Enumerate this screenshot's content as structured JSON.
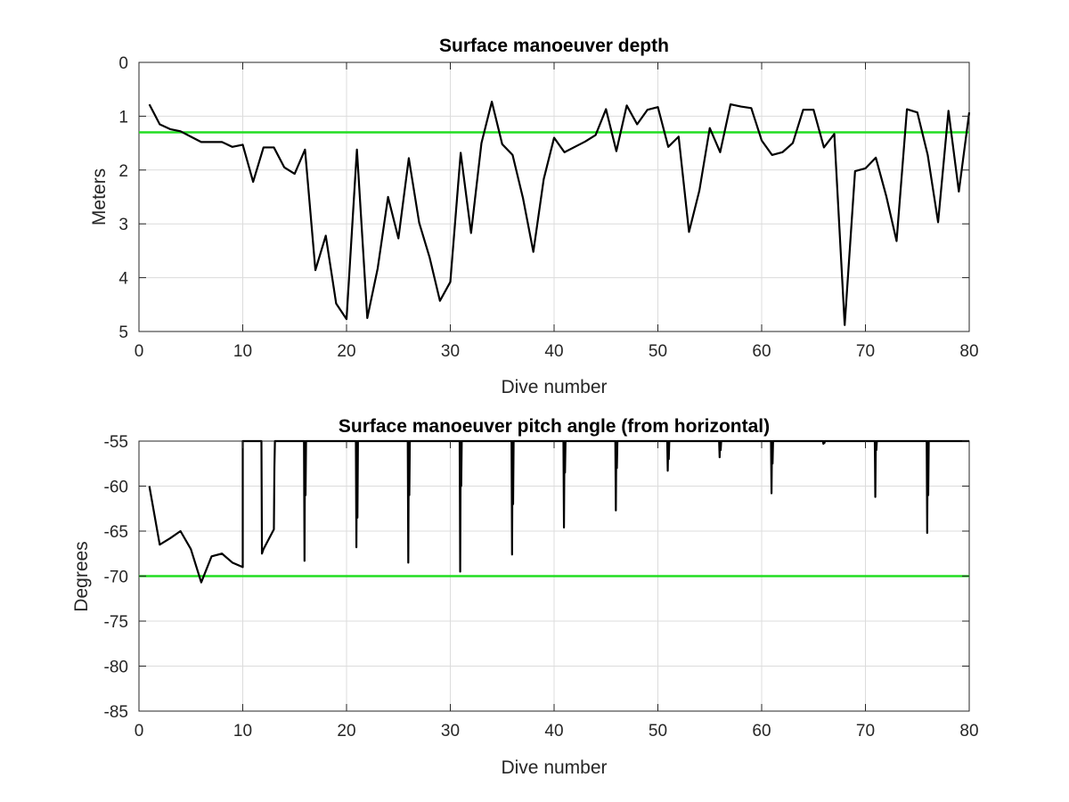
{
  "colors": {
    "series": "#000000",
    "threshold": "#22dd22",
    "grid": "#dcdcdc",
    "axis": "#262626",
    "background": "#ffffff"
  },
  "chart_data": [
    {
      "type": "line",
      "title": "Surface manoeuver depth",
      "xlabel": "Dive number",
      "ylabel": "Meters",
      "xlim": [
        0,
        80
      ],
      "ylim": [
        0,
        5
      ],
      "y_reversed": true,
      "grid": true,
      "xticks": [
        "0",
        "10",
        "20",
        "30",
        "40",
        "50",
        "60",
        "70",
        "80"
      ],
      "yticks": [
        "0",
        "1",
        "2",
        "3",
        "4",
        "5"
      ],
      "series": [
        {
          "x": [
            1,
            2,
            3,
            4,
            5,
            6,
            7,
            8,
            9,
            10,
            11,
            12,
            13,
            14,
            15,
            16,
            17,
            18,
            19,
            20,
            21,
            22,
            23,
            24,
            25,
            26,
            27,
            28,
            29,
            30,
            31,
            32,
            33,
            34,
            35,
            36,
            37,
            38,
            39,
            40,
            41,
            42,
            43,
            44,
            45,
            46,
            47,
            48,
            49,
            50,
            51,
            52,
            53,
            54,
            55,
            56,
            57,
            58,
            59,
            60,
            61,
            62,
            63,
            64,
            65,
            66,
            67,
            68,
            69,
            70,
            71,
            72,
            73,
            74,
            75,
            76,
            77,
            78,
            79,
            80
          ],
          "y": [
            0.78,
            1.15,
            1.24,
            1.28,
            1.38,
            1.48,
            1.48,
            1.48,
            1.57,
            1.53,
            2.22,
            1.58,
            1.58,
            1.95,
            2.07,
            1.62,
            3.86,
            3.22,
            4.48,
            4.77,
            1.62,
            4.75,
            3.83,
            2.5,
            3.27,
            1.78,
            2.98,
            3.62,
            4.43,
            4.08,
            1.68,
            3.17,
            1.5,
            0.73,
            1.52,
            1.72,
            2.52,
            3.52,
            2.17,
            1.4,
            1.67,
            1.57,
            1.47,
            1.35,
            0.87,
            1.65,
            0.8,
            1.15,
            0.88,
            0.83,
            1.57,
            1.38,
            3.15,
            2.38,
            1.22,
            1.67,
            0.78,
            0.82,
            0.85,
            1.45,
            1.72,
            1.67,
            1.5,
            0.88,
            0.88,
            1.58,
            1.33,
            4.88,
            2.02,
            1.97,
            1.77,
            2.48,
            3.32,
            0.87,
            0.93,
            1.72,
            2.97,
            0.9,
            2.4,
            0.93
          ]
        }
      ],
      "threshold": 1.3
    },
    {
      "type": "line",
      "title": "Surface manoeuver pitch angle (from horizontal)",
      "xlabel": "Dive number",
      "ylabel": "Degrees",
      "xlim": [
        0,
        80
      ],
      "ylim": [
        -85,
        -55
      ],
      "grid": true,
      "xticks": [
        "0",
        "10",
        "20",
        "30",
        "40",
        "50",
        "60",
        "70",
        "80"
      ],
      "yticks": [
        "-55",
        "-60",
        "-65",
        "-70",
        "-75",
        "-80",
        "-85"
      ],
      "series": [
        {
          "x": [
            1,
            2,
            3,
            4,
            5,
            6,
            7,
            8,
            9,
            10,
            10,
            10.1,
            11.8,
            11.85,
            12,
            13,
            13.05,
            13.1,
            15.9,
            15.95,
            16,
            16.05,
            16.1,
            20.9,
            20.95,
            21,
            21.05,
            21.1,
            25.9,
            25.95,
            26,
            26.05,
            26.1,
            30.9,
            30.95,
            31,
            31.05,
            31.1,
            35.9,
            35.95,
            36,
            36.05,
            36.1,
            40.9,
            40.95,
            41,
            41.05,
            41.1,
            45.9,
            45.95,
            46,
            46.05,
            46.1,
            50.9,
            50.95,
            51,
            51.05,
            51.1,
            55.9,
            55.95,
            56,
            56.05,
            56.1,
            60.9,
            60.95,
            61,
            61.05,
            61.1,
            65.9,
            65.95,
            66,
            66.05,
            66.1,
            70.9,
            70.95,
            71,
            71.05,
            71.1,
            75.9,
            75.95,
            76,
            76.05,
            76.1,
            80
          ],
          "y": [
            -60,
            -66.5,
            -65.8,
            -65,
            -67,
            -70.7,
            -67.8,
            -67.5,
            -68.5,
            -69,
            -55,
            -55,
            -55,
            -67.5,
            -67,
            -64.8,
            -58,
            -55,
            -55,
            -68.3,
            -55,
            -61,
            -55,
            -55,
            -66.8,
            -55,
            -63.5,
            -55,
            -55,
            -68.5,
            -55,
            -61,
            -55,
            -55,
            -69.5,
            -55,
            -60,
            -55,
            -55,
            -67.6,
            -55,
            -62,
            -55,
            -55,
            -64.6,
            -55,
            -58.5,
            -55,
            -55,
            -62.7,
            -55,
            -58,
            -55,
            -55,
            -58.3,
            -55,
            -57,
            -55,
            -55,
            -56.8,
            -55,
            -56,
            -55,
            -55,
            -60.8,
            -55,
            -57.5,
            -55,
            -55,
            -55.3,
            -55,
            -55.2,
            -55,
            -55,
            -61.2,
            -55,
            -56,
            -55,
            -55,
            -65.2,
            -55,
            -61,
            -55,
            -55
          ]
        }
      ],
      "threshold": -70
    }
  ]
}
